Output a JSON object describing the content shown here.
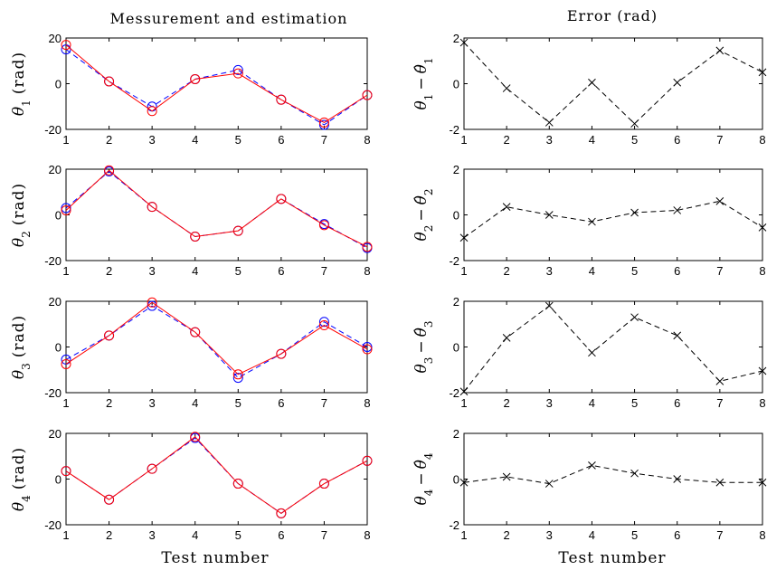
{
  "figure": {
    "left_title": "Messurement and estimation",
    "right_title": "Error (rad)",
    "xlabel": "Test number"
  },
  "colors": {
    "measurement": "#0000ff",
    "estimation": "#ff0000",
    "error": "#000000"
  },
  "chart_data": [
    {
      "type": "line",
      "panel": "measurement-theta1",
      "ylabel_sym": "θ",
      "ylabel_sub": "1",
      "ylabel_unit": "(rad)",
      "x": [
        1,
        2,
        3,
        4,
        5,
        6,
        7,
        8
      ],
      "xticks": [
        1,
        2,
        3,
        4,
        5,
        6,
        7,
        8
      ],
      "ylim": [
        -20,
        20
      ],
      "yticks": [
        -20,
        0,
        20
      ],
      "series": [
        {
          "role": "measurement",
          "style": "dashed-circle",
          "values": [
            15,
            1,
            -10,
            2,
            6,
            -7,
            -18,
            -5
          ]
        },
        {
          "role": "estimation",
          "style": "solid-circle",
          "values": [
            17,
            1,
            -12,
            2,
            4.5,
            -7,
            -17,
            -5
          ]
        }
      ]
    },
    {
      "type": "line",
      "panel": "measurement-theta2",
      "ylabel_sym": "θ",
      "ylabel_sub": "2",
      "ylabel_unit": "(rad)",
      "x": [
        1,
        2,
        3,
        4,
        5,
        6,
        7,
        8
      ],
      "xticks": [
        1,
        2,
        3,
        4,
        5,
        6,
        7,
        8
      ],
      "ylim": [
        -20,
        20
      ],
      "yticks": [
        -20,
        0,
        20
      ],
      "series": [
        {
          "role": "measurement",
          "style": "dashed-circle",
          "values": [
            3,
            19,
            3.5,
            -9.5,
            -7,
            7,
            -4,
            -14.5
          ]
        },
        {
          "role": "estimation",
          "style": "solid-circle",
          "values": [
            2,
            19.5,
            3.5,
            -9.5,
            -7,
            7,
            -4.5,
            -14
          ]
        }
      ]
    },
    {
      "type": "line",
      "panel": "measurement-theta3",
      "ylabel_sym": "θ",
      "ylabel_sub": "3",
      "ylabel_unit": "(rad)",
      "x": [
        1,
        2,
        3,
        4,
        5,
        6,
        7,
        8
      ],
      "xticks": [
        1,
        2,
        3,
        4,
        5,
        6,
        7,
        8
      ],
      "ylim": [
        -20,
        20
      ],
      "yticks": [
        -20,
        0,
        20
      ],
      "series": [
        {
          "role": "measurement",
          "style": "dashed-circle",
          "values": [
            -5.5,
            5,
            18,
            6.5,
            -13.5,
            -3,
            11,
            0
          ]
        },
        {
          "role": "estimation",
          "style": "solid-circle",
          "values": [
            -7.5,
            5,
            19.5,
            6.5,
            -12,
            -3,
            9.5,
            -1
          ]
        }
      ]
    },
    {
      "type": "line",
      "panel": "measurement-theta4",
      "ylabel_sym": "θ",
      "ylabel_sub": "4",
      "ylabel_unit": "(rad)",
      "x": [
        1,
        2,
        3,
        4,
        5,
        6,
        7,
        8
      ],
      "xticks": [
        1,
        2,
        3,
        4,
        5,
        6,
        7,
        8
      ],
      "ylim": [
        -20,
        20
      ],
      "yticks": [
        -20,
        0,
        20
      ],
      "series": [
        {
          "role": "measurement",
          "style": "dashed-circle",
          "values": [
            3.5,
            -9,
            4.5,
            18,
            -2,
            -15,
            -2,
            8
          ]
        },
        {
          "role": "estimation",
          "style": "solid-circle",
          "values": [
            3.5,
            -9,
            4.5,
            18.5,
            -2,
            -15,
            -2,
            8
          ]
        }
      ]
    },
    {
      "type": "line",
      "panel": "error-theta1",
      "ylabel_sym": "θ",
      "ylabel_sub": "1",
      "x": [
        1,
        2,
        3,
        4,
        5,
        6,
        7,
        8
      ],
      "xticks": [
        1,
        2,
        3,
        4,
        5,
        6,
        7,
        8
      ],
      "ylim": [
        -2,
        2
      ],
      "yticks": [
        -2,
        0,
        2
      ],
      "series": [
        {
          "role": "error",
          "style": "dashed-x",
          "values": [
            1.8,
            -0.2,
            -1.7,
            0.05,
            -1.75,
            0.05,
            1.45,
            0.5
          ]
        }
      ]
    },
    {
      "type": "line",
      "panel": "error-theta2",
      "ylabel_sym": "θ",
      "ylabel_sub": "2",
      "x": [
        1,
        2,
        3,
        4,
        5,
        6,
        7,
        8
      ],
      "xticks": [
        1,
        2,
        3,
        4,
        5,
        6,
        7,
        8
      ],
      "ylim": [
        -2,
        2
      ],
      "yticks": [
        -2,
        0,
        2
      ],
      "series": [
        {
          "role": "error",
          "style": "dashed-x",
          "values": [
            -1,
            0.35,
            0,
            -0.3,
            0.1,
            0.2,
            0.6,
            -0.55
          ]
        }
      ]
    },
    {
      "type": "line",
      "panel": "error-theta3",
      "ylabel_sym": "θ",
      "ylabel_sub": "3",
      "x": [
        1,
        2,
        3,
        4,
        5,
        6,
        7,
        8
      ],
      "xticks": [
        1,
        2,
        3,
        4,
        5,
        6,
        7,
        8
      ],
      "ylim": [
        -2,
        2
      ],
      "yticks": [
        -2,
        0,
        2
      ],
      "series": [
        {
          "role": "error",
          "style": "dashed-x",
          "values": [
            -1.95,
            0.4,
            1.8,
            -0.25,
            1.3,
            0.5,
            -1.5,
            -1.05
          ]
        }
      ]
    },
    {
      "type": "line",
      "panel": "error-theta4",
      "ylabel_sym": "θ",
      "ylabel_sub": "4",
      "x": [
        1,
        2,
        3,
        4,
        5,
        6,
        7,
        8
      ],
      "xticks": [
        1,
        2,
        3,
        4,
        5,
        6,
        7,
        8
      ],
      "ylim": [
        -2,
        2
      ],
      "yticks": [
        -2,
        0,
        2
      ],
      "series": [
        {
          "role": "error",
          "style": "dashed-x",
          "values": [
            -0.15,
            0.1,
            -0.2,
            0.6,
            0.25,
            0,
            -0.15,
            -0.15
          ]
        }
      ]
    }
  ]
}
